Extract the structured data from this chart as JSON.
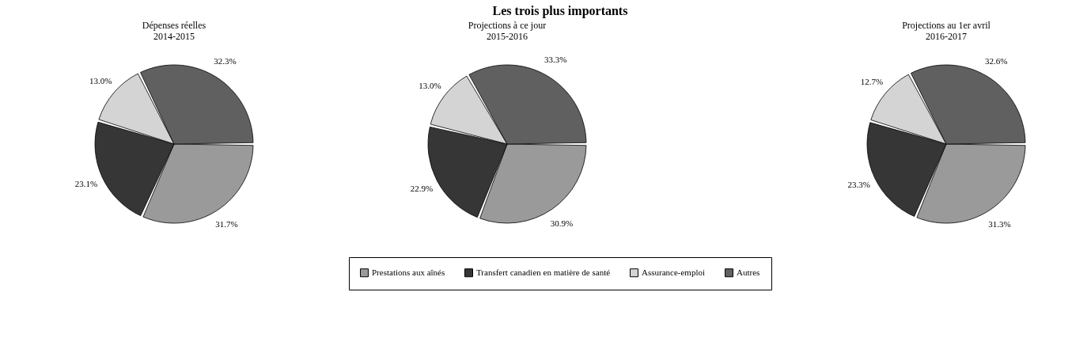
{
  "chart_data": [
    {
      "type": "pie",
      "subtitle": "Dépenses réelles\n2014-2015",
      "categories": [
        null,
        null,
        null,
        null
      ],
      "values": [
        31.7,
        23.1,
        13.0,
        32.3
      ],
      "value_labels": [
        "31.7%",
        "23.1%",
        "13.0%",
        "32.3%"
      ],
      "colors": [
        "#9a9a9a",
        "#363636",
        "#d4d4d4",
        "#606060"
      ]
    },
    {
      "type": "pie",
      "title": "Les trois plus importants",
      "subtitle": "Projections à ce jour\n2015-2016",
      "categories": [
        "Prestations aux aînés",
        "Transfert canadien en matière de santé",
        "Assurance-emploi",
        "Autres"
      ],
      "values": [
        30.9,
        22.9,
        13.0,
        33.3
      ],
      "value_labels": [
        "30.9%",
        "22.9%",
        "13.0%",
        "33.3%"
      ],
      "colors": [
        "#9a9a9a",
        "#363636",
        "#d4d4d4",
        "#606060"
      ],
      "legend": "bottom"
    },
    {
      "type": "pie",
      "subtitle": "Projections au 1er avril\n2016-2017",
      "categories": [
        null,
        null,
        null,
        null
      ],
      "values": [
        31.3,
        23.3,
        12.7,
        32.6
      ],
      "value_labels": [
        "31.3%",
        "23.3%",
        "12.7%",
        "32.6%"
      ],
      "colors": [
        "#9a9a9a",
        "#363636",
        "#d4d4d4",
        "#606060"
      ]
    }
  ]
}
